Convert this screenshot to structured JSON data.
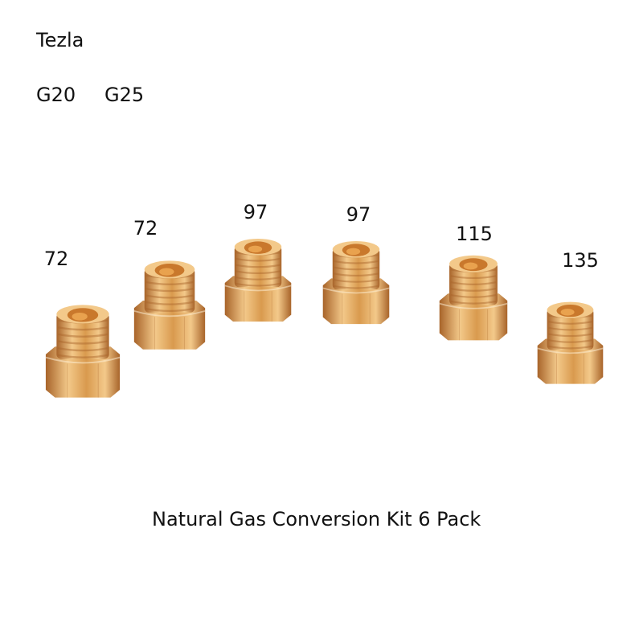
{
  "brand": "Tezla",
  "gas_types": [
    "G20",
    "G25"
  ],
  "caption": "Natural Gas Conversion Kit 6 Pack",
  "jets": [
    {
      "size": "72"
    },
    {
      "size": "72"
    },
    {
      "size": "97"
    },
    {
      "size": "97"
    },
    {
      "size": "115"
    },
    {
      "size": "135"
    }
  ],
  "colors": {
    "brass_light": "#f3c98a",
    "brass_mid": "#d99a4e",
    "brass_dark": "#a8642a",
    "hole": "#c9782c"
  }
}
